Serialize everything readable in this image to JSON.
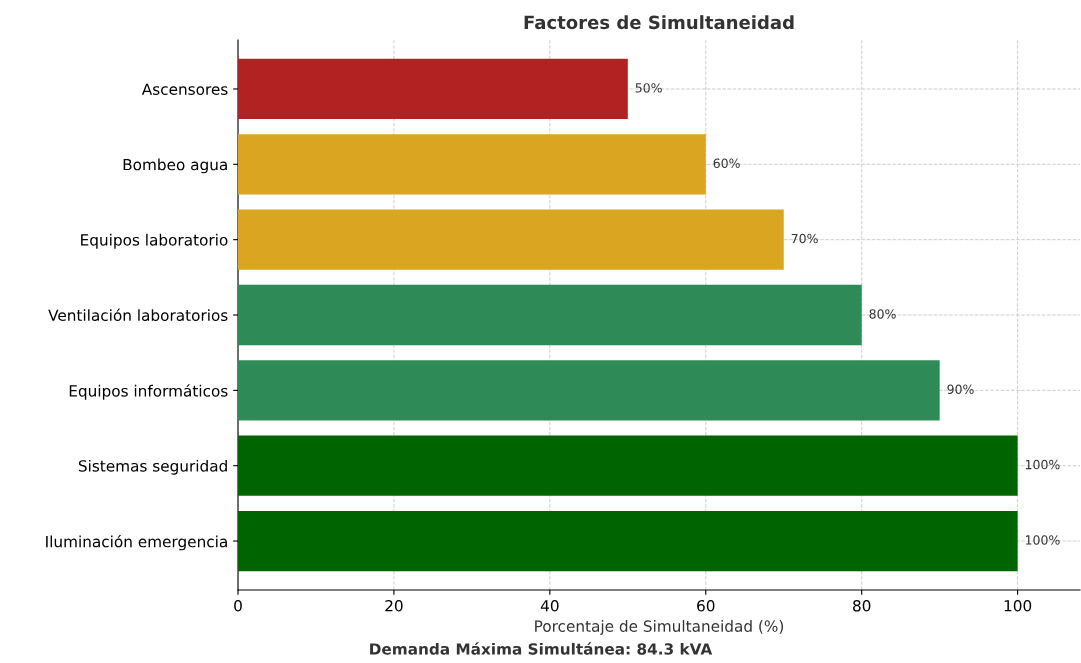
{
  "chart_data": {
    "type": "bar",
    "orientation": "horizontal",
    "title": "Factores de Simultaneidad",
    "xlabel": "Porcentaje de Simultaneidad (%)",
    "categories": [
      "Ascensores",
      "Bombeo agua",
      "Equipos laboratorio",
      "Ventilación laboratorios",
      "Equipos informáticos",
      "Sistemas seguridad",
      "Iluminación emergencia"
    ],
    "values": [
      50,
      60,
      70,
      80,
      90,
      100,
      100
    ],
    "colors": [
      "#b22222",
      "#daa520",
      "#daa520",
      "#2e8b57",
      "#2e8b57",
      "#006400",
      "#006400"
    ],
    "value_labels": [
      "50%",
      "60%",
      "70%",
      "80%",
      "90%",
      "100%",
      "100%"
    ],
    "xlim": [
      0,
      108
    ],
    "xticks": [
      0,
      20,
      40,
      60,
      80,
      100
    ],
    "grid": true,
    "annotations": [
      "Demanda Máxima Simultánea: 84.3 kVA"
    ]
  }
}
